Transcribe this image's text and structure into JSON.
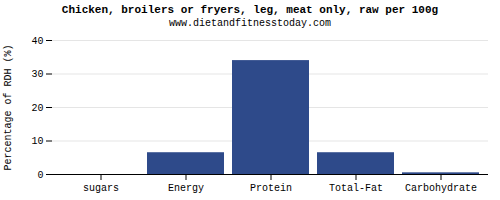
{
  "chart_data": {
    "type": "bar",
    "title": "Chicken, broilers or fryers, leg, meat only, raw per 100g",
    "subtitle": "www.dietandfitnesstoday.com",
    "categories": [
      "sugars",
      "Energy",
      "Protein",
      "Total-Fat",
      "Carbohydrate"
    ],
    "values": [
      0.0,
      6.5,
      34.0,
      6.5,
      0.5
    ],
    "color": "#2e4a8a",
    "ylabel": "Percentage of RDH (%)",
    "ylim": [
      0,
      40
    ],
    "yticks": [
      0,
      10,
      20,
      30,
      40
    ],
    "grid": true
  }
}
